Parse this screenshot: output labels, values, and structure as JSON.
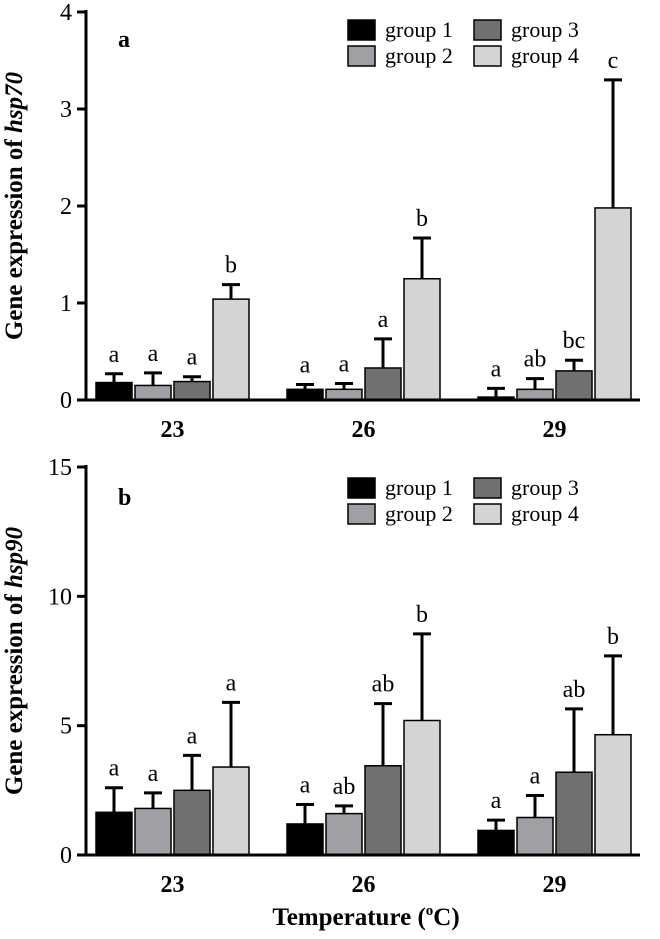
{
  "figure": {
    "xlabel_main": "Temperature (",
    "xlabel_sup": "o",
    "xlabel_tail": "C)"
  },
  "legend": {
    "items": [
      {
        "label": "group 1",
        "color": "#000000"
      },
      {
        "label": "group 2",
        "color": "#a0a0a4"
      },
      {
        "label": "group 3",
        "color": "#707070"
      },
      {
        "label": "group 4",
        "color": "#d4d4d4"
      }
    ]
  },
  "chart_data": [
    {
      "type": "bar",
      "panel_label": "a",
      "ylabel_prefix": "Gene expression of ",
      "ylabel_gene": "hsp70",
      "categories": [
        "23",
        "26",
        "29"
      ],
      "ylim": [
        0,
        4
      ],
      "yticks": [
        0,
        1,
        2,
        3,
        4
      ],
      "legend_position": "top-right",
      "series": [
        {
          "name": "group 1",
          "color": "#000000",
          "values": [
            0.18,
            0.11,
            0.03
          ],
          "errors": [
            0.09,
            0.05,
            0.09
          ],
          "letters": [
            "a",
            "a",
            "a"
          ]
        },
        {
          "name": "group 2",
          "color": "#a0a0a4",
          "values": [
            0.15,
            0.11,
            0.11
          ],
          "errors": [
            0.13,
            0.06,
            0.11
          ],
          "letters": [
            "a",
            "a",
            "ab"
          ]
        },
        {
          "name": "group 3",
          "color": "#707070",
          "values": [
            0.19,
            0.33,
            0.3
          ],
          "errors": [
            0.05,
            0.3,
            0.11
          ],
          "letters": [
            "a",
            "a",
            "bc"
          ]
        },
        {
          "name": "group 4",
          "color": "#d4d4d4",
          "values": [
            1.04,
            1.25,
            1.98
          ],
          "errors": [
            0.15,
            0.42,
            1.32
          ],
          "letters": [
            "b",
            "b",
            "c"
          ]
        }
      ]
    },
    {
      "type": "bar",
      "panel_label": "b",
      "ylabel_prefix": "Gene expression of ",
      "ylabel_gene": "hsp90",
      "categories": [
        "23",
        "26",
        "29"
      ],
      "ylim": [
        0,
        15
      ],
      "yticks": [
        0,
        5,
        10,
        15
      ],
      "legend_position": "top-right",
      "series": [
        {
          "name": "group 1",
          "color": "#000000",
          "values": [
            1.65,
            1.2,
            0.95
          ],
          "errors": [
            0.95,
            0.75,
            0.4
          ],
          "letters": [
            "a",
            "a",
            "a"
          ]
        },
        {
          "name": "group 2",
          "color": "#a0a0a4",
          "values": [
            1.8,
            1.6,
            1.45
          ],
          "errors": [
            0.6,
            0.3,
            0.85
          ],
          "letters": [
            "a",
            "ab",
            "a"
          ]
        },
        {
          "name": "group 3",
          "color": "#707070",
          "values": [
            2.5,
            3.45,
            3.2
          ],
          "errors": [
            1.35,
            2.4,
            2.45
          ],
          "letters": [
            "a",
            "ab",
            "ab"
          ]
        },
        {
          "name": "group 4",
          "color": "#d4d4d4",
          "values": [
            3.4,
            5.2,
            4.65
          ],
          "errors": [
            2.5,
            3.35,
            3.05
          ],
          "letters": [
            "a",
            "b",
            "b"
          ]
        }
      ]
    }
  ]
}
